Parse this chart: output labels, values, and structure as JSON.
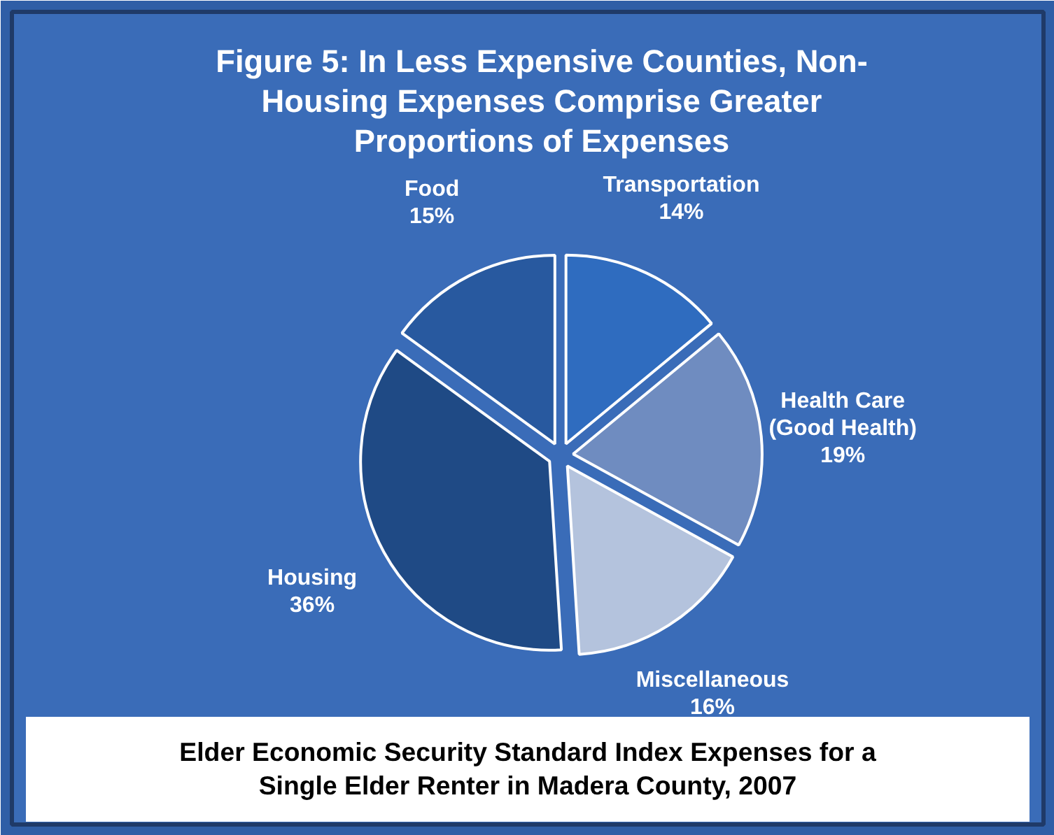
{
  "chart_data": {
    "type": "pie",
    "title": "Figure 5: In Less Expensive Counties, Non-Housing Expenses Comprise Greater Proportions of Expenses",
    "categories": [
      "Transportation",
      "Health Care\n(Good Health)",
      "Miscellaneous",
      "Housing",
      "Food"
    ],
    "values": [
      14,
      19,
      16,
      36,
      15
    ],
    "colors": [
      "#2f6cbf",
      "#6f8cc0",
      "#b4c3dd",
      "#1f4a85",
      "#28599f"
    ],
    "value_labels": [
      "14%",
      "19%",
      "16%",
      "36%",
      "15%"
    ],
    "annotations": [
      "Elder Economic Security Standard Index Expenses for a Single Elder Renter in Madera County, 2007"
    ]
  }
}
